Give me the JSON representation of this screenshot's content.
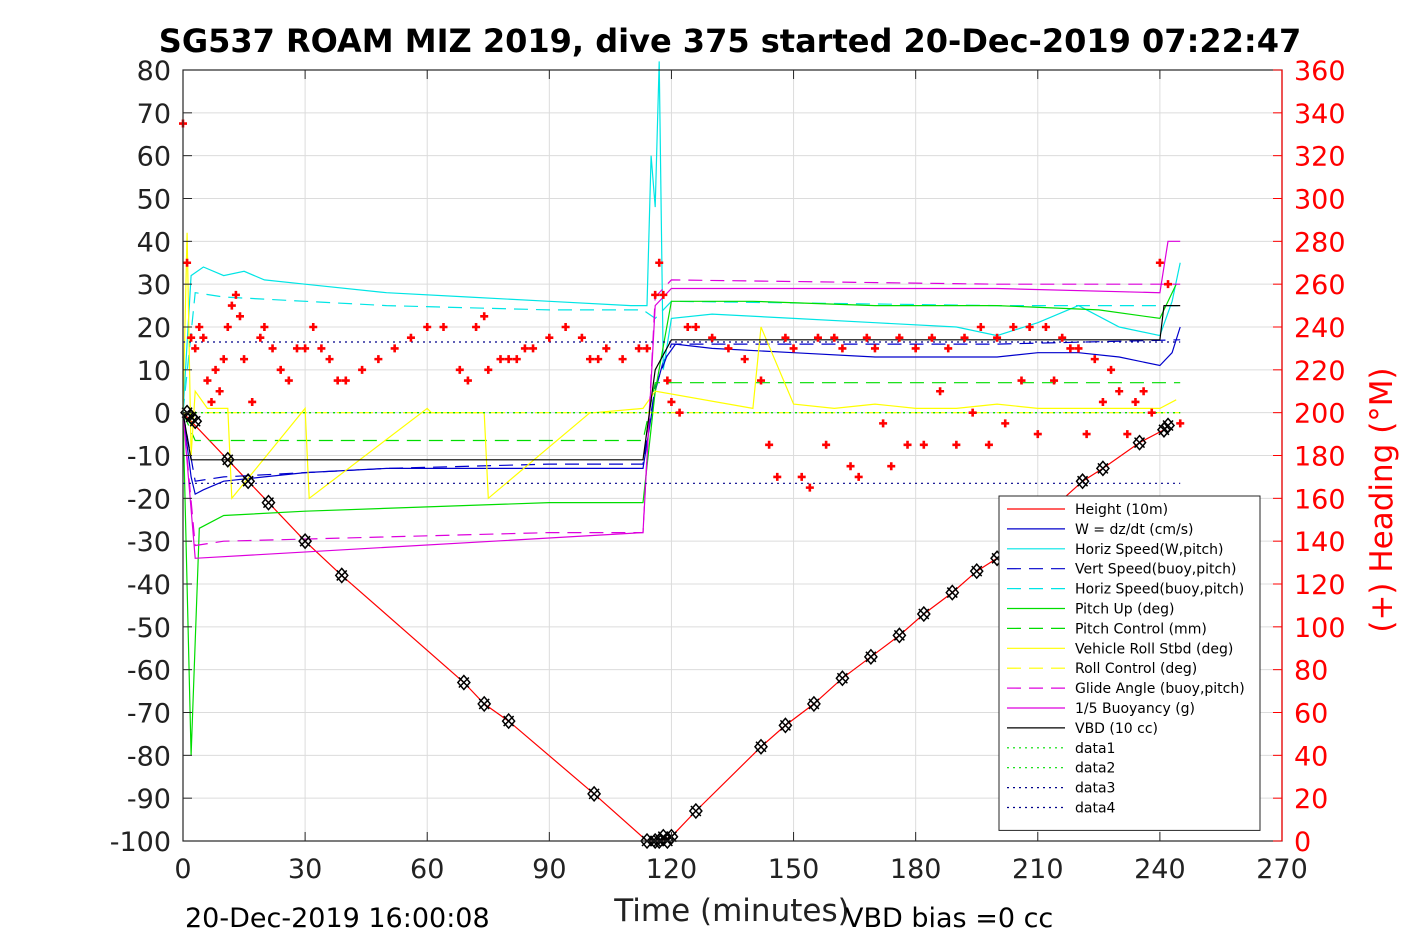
{
  "chart_data": {
    "type": "line",
    "title": "SG537 ROAM MIZ 2019, dive 375 started 20-Dec-2019 07:22:47",
    "xlabel": "Time (minutes)",
    "ylabel_right": "(+) Heading (°M)",
    "xlim": [
      0,
      270
    ],
    "ylim_left": [
      -100,
      80
    ],
    "ylim_right": [
      0,
      360
    ],
    "x_ticks": [
      "0",
      "30",
      "60",
      "90",
      "120",
      "150",
      "180",
      "210",
      "240",
      "270"
    ],
    "y_ticks_left": [
      "80",
      "70",
      "60",
      "50",
      "40",
      "30",
      "20",
      "10",
      "0",
      "-10",
      "-20",
      "-30",
      "-40",
      "-50",
      "-60",
      "-70",
      "-80",
      "-90",
      "-100"
    ],
    "y_ticks_right": [
      "360",
      "340",
      "320",
      "300",
      "280",
      "260",
      "240",
      "220",
      "200",
      "180",
      "160",
      "140",
      "120",
      "100",
      "80",
      "60",
      "40",
      "20",
      "0"
    ],
    "grid": true,
    "legend_position": "bottom-right",
    "footer_left": "20-Dec-2019 16:00:08",
    "footer_right": "VBD bias =0 cc",
    "series": [
      {
        "name": "Height (10m)",
        "color": "#ff0000",
        "style": "solid",
        "x": [
          0,
          11,
          16,
          21,
          30,
          39,
          69,
          74,
          80,
          101,
          114,
          117,
          120,
          126,
          142,
          148,
          155,
          162,
          169,
          176,
          182,
          189,
          195,
          200,
          221,
          226,
          235,
          241,
          242
        ],
        "values": [
          0,
          -11,
          -16,
          -21,
          -30,
          -38,
          -63,
          -68,
          -72,
          -89,
          -100,
          -100,
          -99,
          -93,
          -78,
          -73,
          -68,
          -62,
          -57,
          -52,
          -47,
          -42,
          -37,
          -34,
          -16,
          -13,
          -7,
          -4,
          -3
        ]
      },
      {
        "name": "W = dz/dt (cm/s)",
        "color": "#0000cc",
        "style": "solid",
        "x": [
          0,
          2,
          3,
          5,
          10,
          20,
          30,
          50,
          70,
          90,
          113,
          116,
          118,
          121,
          130,
          150,
          170,
          190,
          200,
          210,
          220,
          230,
          240,
          243,
          245
        ],
        "values": [
          0,
          -15,
          -19,
          -18,
          -16,
          -15,
          -14,
          -13,
          -13,
          -13,
          -13,
          5,
          12,
          16,
          15,
          14,
          13,
          13,
          13,
          14,
          14,
          13,
          11,
          14,
          20
        ]
      },
      {
        "name": "Horiz Speed(W,pitch)",
        "color": "#00e5e5",
        "style": "solid",
        "x": [
          0,
          2,
          5,
          10,
          15,
          20,
          30,
          50,
          70,
          90,
          110,
          114,
          115,
          116,
          117,
          118,
          120,
          130,
          150,
          170,
          190,
          200,
          210,
          220,
          230,
          240,
          243,
          245
        ],
        "values": [
          0,
          32,
          34,
          32,
          33,
          31,
          30,
          28,
          27,
          26,
          25,
          25,
          60,
          48,
          82,
          10,
          22,
          23,
          22,
          21,
          20,
          18,
          21,
          25,
          20,
          18,
          26,
          35
        ]
      },
      {
        "name": "Vert Speed(buoy,pitch)",
        "color": "#0000cc",
        "style": "dashed",
        "x": [
          0,
          3,
          10,
          50,
          90,
          113,
          116,
          120,
          200,
          245
        ],
        "values": [
          0,
          -16,
          -15,
          -13,
          -12,
          -12,
          6,
          16,
          16,
          17
        ]
      },
      {
        "name": "Horiz Speed(buoy,pitch)",
        "color": "#00e5e5",
        "style": "dashed",
        "x": [
          0,
          3,
          10,
          50,
          90,
          113,
          116,
          120,
          200,
          245
        ],
        "values": [
          0,
          28,
          27,
          25,
          24,
          24,
          22,
          26,
          25,
          25
        ]
      },
      {
        "name": "Pitch Up (deg)",
        "color": "#00dd00",
        "style": "solid",
        "x": [
          0,
          2,
          4,
          10,
          30,
          60,
          90,
          113,
          116,
          120,
          140,
          170,
          200,
          225,
          240,
          244
        ],
        "values": [
          0,
          -80,
          -27,
          -24,
          -23,
          -22,
          -21,
          -21,
          5,
          26,
          26,
          25,
          25,
          24,
          22,
          30
        ]
      },
      {
        "name": "Pitch Control (mm)",
        "color": "#00dd00",
        "style": "dashed",
        "x": [
          0,
          3,
          113,
          116,
          245
        ],
        "values": [
          0,
          -6.5,
          -6.5,
          7,
          7
        ]
      },
      {
        "name": "Vehicle Roll Stbd (deg)",
        "color": "#ffff00",
        "style": "solid",
        "x": [
          0,
          1,
          2,
          3,
          6,
          11,
          12,
          30,
          31,
          60,
          61,
          74,
          75,
          100,
          101,
          113,
          116,
          140,
          142,
          150,
          160,
          170,
          180,
          190,
          200,
          210,
          220,
          230,
          240,
          244
        ],
        "values": [
          0,
          42,
          -10,
          5,
          1,
          1,
          -20,
          1,
          -20,
          1,
          0,
          0,
          -20,
          0,
          0,
          1,
          5,
          1,
          20,
          2,
          1,
          2,
          1,
          1,
          2,
          1,
          1,
          1,
          1,
          3
        ]
      },
      {
        "name": "Roll Control (deg)",
        "color": "#ffff00",
        "style": "dashed",
        "x": [
          0,
          245
        ],
        "values": [
          0,
          0
        ]
      },
      {
        "name": "Glide Angle (buoy,pitch)",
        "color": "#dd00dd",
        "style": "dashed",
        "x": [
          0,
          3,
          10,
          50,
          90,
          113,
          116,
          120,
          200,
          245
        ],
        "values": [
          0,
          -31,
          -30,
          -29,
          -28,
          -28,
          27,
          31,
          30,
          30
        ]
      },
      {
        "name": "1/5 Buoyancy (g)",
        "color": "#dd00dd",
        "style": "solid",
        "x": [
          0,
          3,
          113,
          116,
          120,
          200,
          240,
          242,
          245
        ],
        "values": [
          0,
          -34,
          -28,
          25,
          29,
          29,
          28,
          40,
          40
        ]
      },
      {
        "name": "VBD (10 cc)",
        "color": "#000000",
        "style": "solid",
        "x": [
          0,
          2,
          113,
          116,
          120,
          240,
          241,
          245
        ],
        "values": [
          0,
          -11,
          -11,
          10,
          17,
          17,
          25,
          25
        ]
      },
      {
        "name": "data1",
        "color": "#00dd00",
        "style": "dotted",
        "x": [
          0,
          245
        ],
        "values": [
          0,
          0
        ]
      },
      {
        "name": "data2",
        "color": "#00dd00",
        "style": "dotted",
        "x": [
          0,
          245
        ],
        "values": [
          0,
          0
        ]
      },
      {
        "name": "data3",
        "color": "#00008b",
        "style": "dotted",
        "x": [
          0,
          245
        ],
        "values": [
          16.5,
          16.5
        ]
      },
      {
        "name": "data4",
        "color": "#00008b",
        "style": "dotted",
        "x": [
          0,
          245
        ],
        "values": [
          -16.5,
          -16.5
        ]
      }
    ],
    "heading_series": {
      "name": "(+) Heading (°M)",
      "color": "#ff0000",
      "marker": "+",
      "axis": "right",
      "x": [
        0,
        1,
        2,
        3,
        4,
        5,
        6,
        7,
        8,
        9,
        10,
        11,
        12,
        13,
        14,
        15,
        17,
        19,
        20,
        22,
        24,
        26,
        28,
        30,
        32,
        34,
        36,
        38,
        40,
        44,
        48,
        52,
        56,
        60,
        64,
        68,
        70,
        72,
        74,
        75,
        78,
        80,
        82,
        84,
        86,
        90,
        94,
        98,
        100,
        102,
        104,
        108,
        112,
        114,
        116,
        117,
        118,
        119,
        120,
        122,
        124,
        126,
        130,
        134,
        138,
        142,
        144,
        146,
        148,
        150,
        152,
        154,
        156,
        158,
        160,
        162,
        164,
        166,
        168,
        170,
        172,
        174,
        176,
        178,
        180,
        182,
        184,
        186,
        188,
        190,
        192,
        194,
        196,
        198,
        200,
        202,
        204,
        206,
        208,
        210,
        212,
        214,
        216,
        218,
        220,
        222,
        224,
        226,
        228,
        230,
        232,
        234,
        236,
        238,
        240,
        242,
        245
      ],
      "values": [
        335,
        270,
        235,
        230,
        240,
        235,
        215,
        205,
        220,
        210,
        225,
        240,
        250,
        255,
        245,
        225,
        205,
        235,
        240,
        230,
        220,
        215,
        230,
        230,
        240,
        230,
        225,
        215,
        215,
        220,
        225,
        230,
        235,
        240,
        240,
        220,
        215,
        240,
        245,
        220,
        225,
        225,
        225,
        230,
        230,
        235,
        240,
        235,
        225,
        225,
        230,
        225,
        230,
        230,
        255,
        270,
        255,
        215,
        205,
        200,
        240,
        240,
        235,
        230,
        225,
        215,
        185,
        170,
        235,
        230,
        170,
        165,
        235,
        185,
        235,
        230,
        175,
        170,
        235,
        230,
        195,
        175,
        235,
        185,
        230,
        185,
        235,
        210,
        230,
        185,
        235,
        200,
        240,
        185,
        235,
        195,
        240,
        215,
        240,
        190,
        240,
        215,
        235,
        230,
        230,
        190,
        225,
        205,
        220,
        210,
        190,
        205,
        210,
        200,
        270,
        260,
        195
      ]
    },
    "vbd_markers": {
      "x": [
        1,
        2,
        3,
        11,
        16,
        21,
        30,
        39,
        69,
        74,
        80,
        101,
        114,
        116,
        117,
        118,
        119,
        120,
        126,
        142,
        148,
        155,
        162,
        169,
        176,
        182,
        189,
        195,
        200,
        221,
        226,
        235,
        241,
        242
      ],
      "values": [
        0,
        -1,
        -2,
        -11,
        -16,
        -21,
        -30,
        -38,
        -63,
        -68,
        -72,
        -89,
        -100,
        -100,
        -100,
        -99,
        -100,
        -99,
        -93,
        -78,
        -73,
        -68,
        -62,
        -57,
        -52,
        -47,
        -42,
        -37,
        -34,
        -16,
        -13,
        -7,
        -4,
        -3
      ]
    }
  }
}
